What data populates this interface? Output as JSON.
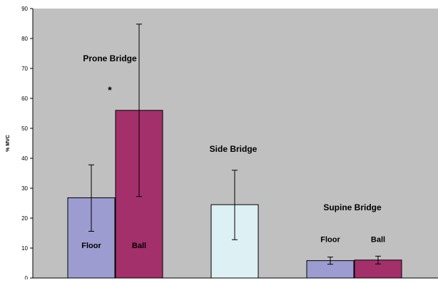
{
  "chart_data": {
    "type": "bar",
    "title": "",
    "xlabel": "",
    "ylabel": "% MVC",
    "ylim": [
      0,
      90
    ],
    "yticks": [
      0,
      10,
      20,
      30,
      40,
      50,
      60,
      70,
      80,
      90
    ],
    "grid": false,
    "legend": "none",
    "bars": [
      {
        "group": "Prone Bridge",
        "label": "Floor",
        "value": 26.8,
        "error_low": 15.6,
        "error_high": 37.8,
        "color": "#9c9cd0"
      },
      {
        "group": "Prone Bridge",
        "label": "Ball",
        "value": 56.0,
        "error_low": 27.2,
        "error_high": 84.8,
        "color": "#a3306a"
      },
      {
        "group": "Side Bridge",
        "label": "",
        "value": 24.5,
        "error_low": 12.8,
        "error_high": 36.0,
        "color": "#ddf0f3"
      },
      {
        "group": "Supine Bridge",
        "label": "Floor",
        "value": 5.8,
        "error_low": 4.6,
        "error_high": 7.0,
        "color": "#9c9cd0"
      },
      {
        "group": "Supine Bridge",
        "label": "Ball",
        "value": 6.0,
        "error_low": 4.7,
        "error_high": 7.3,
        "color": "#a3306a"
      }
    ],
    "group_labels": [
      "Prone Bridge",
      "Side Bridge",
      "Supine Bridge"
    ],
    "annotations": [
      "*"
    ],
    "colors": {
      "plot_bg": "#c0c0c0",
      "page_bg": "#ffffff",
      "outline": "#000000"
    }
  }
}
